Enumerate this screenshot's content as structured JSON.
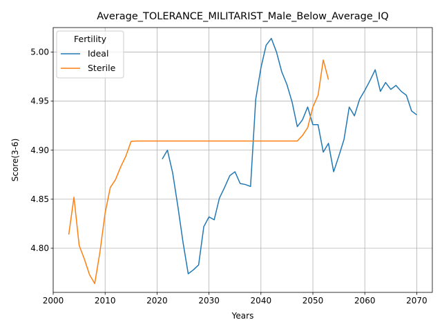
{
  "chart_data": {
    "type": "line",
    "title": "Average_TOLERANCE_MILITARIST_Male_Below_Average_IQ",
    "xlabel": "Years",
    "ylabel": "Score(3-6)",
    "xlim": [
      2000,
      2073
    ],
    "ylim": [
      4.755,
      5.025
    ],
    "xticks": [
      2000,
      2010,
      2020,
      2030,
      2040,
      2050,
      2060,
      2070
    ],
    "yticks": [
      4.8,
      4.85,
      4.9,
      4.95,
      5.0
    ],
    "ytick_labels": [
      "4.80",
      "4.85",
      "4.90",
      "4.95",
      "5.00"
    ],
    "grid": true,
    "legend": {
      "title": "Fertility",
      "placement": "top-left"
    },
    "series": [
      {
        "name": "Ideal",
        "color": "#1f77b4",
        "x": [
          2021,
          2022,
          2023,
          2024,
          2025,
          2026,
          2027,
          2028,
          2029,
          2030,
          2031,
          2032,
          2033,
          2034,
          2035,
          2036,
          2037,
          2038,
          2039,
          2040,
          2041,
          2042,
          2043,
          2044,
          2045,
          2046,
          2047,
          2048,
          2049,
          2050,
          2051,
          2052,
          2053,
          2054,
          2055,
          2056,
          2057,
          2058,
          2059,
          2060,
          2061,
          2062,
          2063,
          2064,
          2065,
          2066,
          2067,
          2068,
          2069,
          2070
        ],
        "values": [
          4.891,
          4.9,
          4.877,
          4.843,
          4.806,
          4.774,
          4.778,
          4.783,
          4.822,
          4.832,
          4.829,
          4.851,
          4.862,
          4.874,
          4.878,
          4.866,
          4.865,
          4.863,
          4.952,
          4.984,
          5.007,
          5.014,
          5.0,
          4.98,
          4.967,
          4.949,
          4.924,
          4.931,
          4.944,
          4.926,
          4.926,
          4.898,
          4.907,
          4.878,
          4.894,
          4.911,
          4.944,
          4.935,
          4.952,
          4.961,
          4.971,
          4.982,
          4.96,
          4.969,
          4.962,
          4.966,
          4.96,
          4.956,
          4.94,
          4.936
        ]
      },
      {
        "name": "Sterile",
        "color": "#ff7f0e",
        "x": [
          2003,
          2004,
          2005,
          2006,
          2007,
          2008,
          2009,
          2010,
          2011,
          2012,
          2013,
          2014,
          2015,
          2016,
          2020,
          2025,
          2030,
          2035,
          2040,
          2045,
          2047,
          2048,
          2049,
          2050,
          2051,
          2052,
          2053
        ],
        "values": [
          4.814,
          4.852,
          4.803,
          4.789,
          4.773,
          4.764,
          4.796,
          4.836,
          4.862,
          4.87,
          4.883,
          4.894,
          4.909,
          4.9093,
          4.9093,
          4.9093,
          4.9093,
          4.9093,
          4.9093,
          4.9093,
          4.9093,
          4.915,
          4.923,
          4.944,
          4.956,
          4.992,
          4.972
        ]
      }
    ]
  }
}
